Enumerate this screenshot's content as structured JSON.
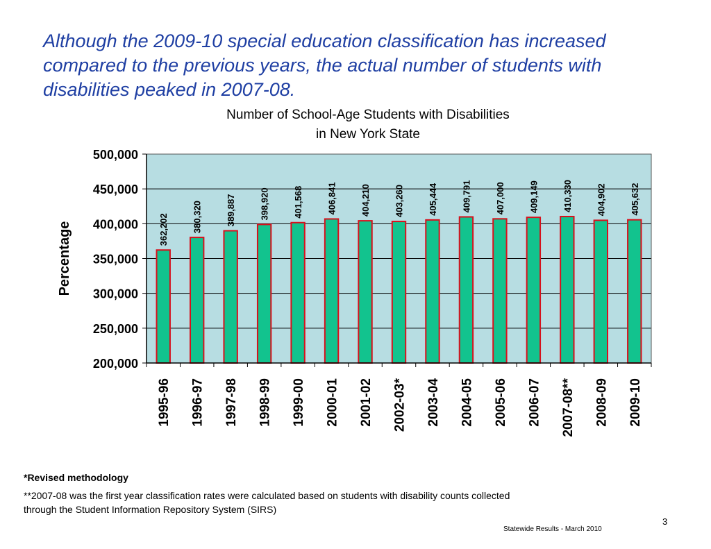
{
  "headline": "Although the 2009-10 special education classification has increased compared to the  previous years, the actual number of students with disabilities peaked in 2007-08.",
  "chart_data": {
    "type": "bar",
    "title_line1": "Number of School-Age Students with Disabilities",
    "title_line2": "in New York State",
    "ylabel": "Percentage",
    "xlabel": "",
    "ylim": [
      200000,
      500000
    ],
    "yticks": [
      "500,000",
      "450,000",
      "400,000",
      "350,000",
      "300,000",
      "250,000",
      "200,000"
    ],
    "ytick_values": [
      500000,
      450000,
      400000,
      350000,
      300000,
      250000,
      200000
    ],
    "categories": [
      "1995-96",
      "1996-97",
      "1997-98",
      "1998-99",
      "1999-00",
      "2000-01",
      "2001-02",
      "2002-03*",
      "2003-04",
      "2004-05",
      "2005-06",
      "2006-07",
      "2007-08**",
      "2008-09",
      "2009-10"
    ],
    "values": [
      362202,
      380320,
      389887,
      398920,
      401568,
      406841,
      404210,
      403260,
      405444,
      409791,
      407000,
      409149,
      410330,
      404902,
      405632
    ],
    "value_labels": [
      "362,202",
      "380,320",
      "389,887",
      "398,920",
      "401,568",
      "406,841",
      "404,210",
      "403,260",
      "405,444",
      "409,791",
      "407,000",
      "409,149",
      "410,330",
      "404,902",
      "405,632"
    ],
    "grid": true,
    "legend": "none",
    "colors": {
      "plot_background": "#b7dde2",
      "bar_fill": "#12c38e",
      "bar_outline": "#d8101c",
      "gridline": "#000000",
      "headline": "#1f3fa3"
    }
  },
  "footnotes": {
    "revised": "*Revised methodology",
    "sirs": "**2007-08 was the first year classification rates were calculated based on students with disability counts collected through the Student Information Repository System (SIRS)"
  },
  "page_number": "3",
  "footer": "Statewide Results - March 2010"
}
